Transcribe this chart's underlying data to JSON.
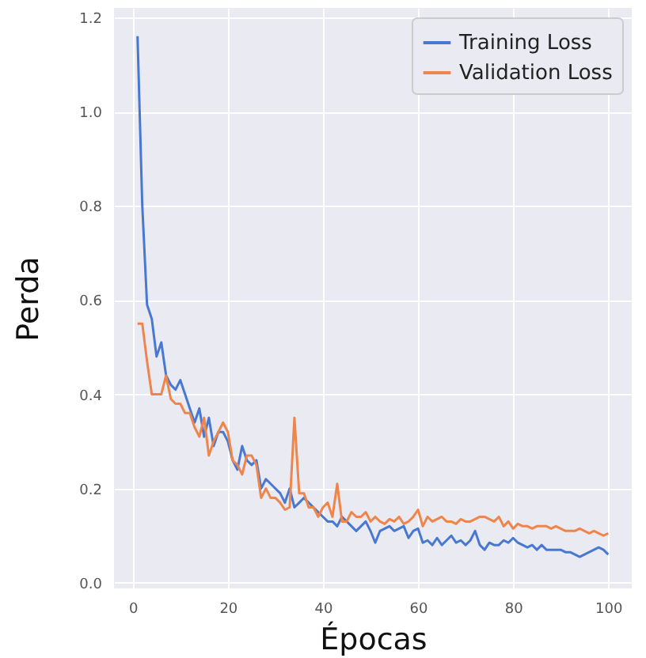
{
  "chart_data": {
    "type": "line",
    "xlabel": "Épocas",
    "ylabel": "Perda",
    "x": [
      1,
      2,
      3,
      4,
      5,
      6,
      7,
      8,
      9,
      10,
      11,
      12,
      13,
      14,
      15,
      16,
      17,
      18,
      19,
      20,
      21,
      22,
      23,
      24,
      25,
      26,
      27,
      28,
      29,
      30,
      31,
      32,
      33,
      34,
      35,
      36,
      37,
      38,
      39,
      40,
      41,
      42,
      43,
      44,
      45,
      46,
      47,
      48,
      49,
      50,
      51,
      52,
      53,
      54,
      55,
      56,
      57,
      58,
      59,
      60,
      61,
      62,
      63,
      64,
      65,
      66,
      67,
      68,
      69,
      70,
      71,
      72,
      73,
      74,
      75,
      76,
      77,
      78,
      79,
      80,
      81,
      82,
      83,
      84,
      85,
      86,
      87,
      88,
      89,
      90,
      91,
      92,
      93,
      94,
      95,
      96,
      97,
      98,
      99,
      100
    ],
    "series": [
      {
        "name": "Training Loss",
        "color": "#4878d0",
        "values": [
          1.16,
          0.8,
          0.59,
          0.56,
          0.48,
          0.51,
          0.44,
          0.42,
          0.41,
          0.43,
          0.4,
          0.37,
          0.34,
          0.37,
          0.31,
          0.35,
          0.29,
          0.32,
          0.32,
          0.3,
          0.26,
          0.24,
          0.29,
          0.26,
          0.25,
          0.26,
          0.2,
          0.22,
          0.21,
          0.2,
          0.19,
          0.17,
          0.2,
          0.16,
          0.17,
          0.18,
          0.17,
          0.16,
          0.15,
          0.14,
          0.13,
          0.13,
          0.12,
          0.14,
          0.13,
          0.12,
          0.11,
          0.12,
          0.13,
          0.11,
          0.085,
          0.11,
          0.115,
          0.12,
          0.11,
          0.115,
          0.12,
          0.095,
          0.11,
          0.115,
          0.085,
          0.09,
          0.08,
          0.095,
          0.08,
          0.09,
          0.1,
          0.085,
          0.09,
          0.08,
          0.09,
          0.11,
          0.08,
          0.07,
          0.085,
          0.08,
          0.08,
          0.09,
          0.085,
          0.095,
          0.085,
          0.08,
          0.075,
          0.08,
          0.07,
          0.08,
          0.07,
          0.07,
          0.07,
          0.07,
          0.065,
          0.065,
          0.06,
          0.055,
          0.06,
          0.065,
          0.07,
          0.075,
          0.07,
          0.06
        ]
      },
      {
        "name": "Validation Loss",
        "color": "#ee854a",
        "values": [
          0.55,
          0.55,
          0.47,
          0.4,
          0.4,
          0.4,
          0.44,
          0.39,
          0.38,
          0.38,
          0.36,
          0.36,
          0.33,
          0.31,
          0.35,
          0.27,
          0.3,
          0.32,
          0.34,
          0.32,
          0.26,
          0.25,
          0.23,
          0.27,
          0.27,
          0.25,
          0.18,
          0.2,
          0.18,
          0.18,
          0.17,
          0.155,
          0.16,
          0.35,
          0.19,
          0.19,
          0.16,
          0.16,
          0.14,
          0.16,
          0.17,
          0.14,
          0.21,
          0.13,
          0.13,
          0.15,
          0.14,
          0.14,
          0.15,
          0.13,
          0.14,
          0.13,
          0.125,
          0.135,
          0.13,
          0.14,
          0.125,
          0.13,
          0.14,
          0.155,
          0.12,
          0.14,
          0.13,
          0.135,
          0.14,
          0.13,
          0.13,
          0.125,
          0.135,
          0.13,
          0.13,
          0.135,
          0.14,
          0.14,
          0.135,
          0.13,
          0.14,
          0.12,
          0.13,
          0.115,
          0.125,
          0.12,
          0.12,
          0.115,
          0.12,
          0.12,
          0.12,
          0.115,
          0.12,
          0.115,
          0.11,
          0.11,
          0.11,
          0.115,
          0.11,
          0.105,
          0.11,
          0.105,
          0.1,
          0.105
        ]
      }
    ],
    "xlim": [
      -3.95,
      104.95
    ],
    "ylim": [
      -0.012,
      1.22
    ],
    "xticks": [
      0,
      20,
      40,
      60,
      80,
      100
    ],
    "yticks": [
      {
        "value": 0,
        "label": "0.0"
      },
      0.2,
      0.4,
      0.6,
      0.8,
      {
        "value": 1,
        "label": "1.0"
      },
      1.2
    ],
    "grid": true,
    "legend": "top right",
    "line_style": "solid",
    "marker": "none"
  }
}
